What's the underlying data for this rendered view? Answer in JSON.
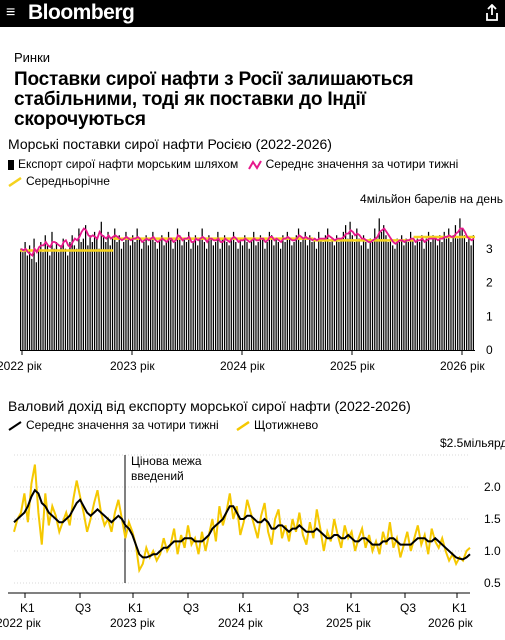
{
  "header": {
    "logo": "Bloomberg",
    "menu_icon": "hamburger-menu-icon",
    "share_icon": "share-icon",
    "background": "#000000"
  },
  "article": {
    "section": "Ринки",
    "headline": "Поставки сирої нафти з Росії залишаються стабільними, тоді як поставки до Індії скорочуються"
  },
  "chart1": {
    "title": "Морські поставки сирої нафти Росією (2022-2026)",
    "legend": {
      "bars": "Експорт сирої нафти морським шляхом",
      "avg4w": "Середнє значення за чотири тижні",
      "yearly": "Середньорічне"
    },
    "colors": {
      "bars": "#000000",
      "avg4w": "#e6198c",
      "yearly": "#f5d21e"
    },
    "unit_label": "мільйон барелів на день",
    "y_ticks": [
      "4",
      "3",
      "2",
      "1",
      "0"
    ],
    "x_labels": [
      "2022 рік",
      "2023 рік",
      "2024 рік",
      "2025 рік",
      "2026 рік"
    ]
  },
  "chart2": {
    "title": "Валовий дохід від експорту морської сирої нафти (2022-2026)",
    "legend": {
      "avg4w": "Середнє значення за чотири тижні",
      "weekly": "Щотижнево"
    },
    "colors": {
      "avg4w": "#000000",
      "weekly": "#f5c800"
    },
    "unit_label": "$2.5мільярд",
    "y_ticks": [
      "2.0",
      "1.5",
      "1.0",
      "0.5"
    ],
    "annotation": "Цінова межа введений",
    "quarter_labels": [
      "K1",
      "Q3",
      "K1",
      "Q3",
      "K1",
      "Q3",
      "K1",
      "Q3",
      "K1"
    ],
    "year_labels": [
      "2022 рік",
      "2023 рік",
      "2024 рік",
      "2025 рік",
      "2026 рік"
    ]
  },
  "chart_data": [
    {
      "type": "bar",
      "title": "Морські поставки сирої нафти Росією (2022-2026)",
      "ylabel": "мільйон барелів на день",
      "ylim": [
        0,
        4
      ],
      "x_start": "2022-01",
      "x_end": "2026-02",
      "series": [
        {
          "name": "Експорт сирої нафти морським шляхом",
          "values": [
            3.0,
            2.9,
            3.2,
            2.8,
            3.1,
            2.7,
            3.3,
            2.6,
            3.0,
            3.2,
            2.9,
            3.4,
            3.1,
            2.8,
            3.5,
            3.0,
            3.2,
            2.9,
            3.1,
            3.3,
            3.0,
            2.8,
            3.2,
            3.4,
            3.1,
            3.0,
            3.6,
            3.2,
            3.3,
            3.7,
            3.1,
            3.4,
            3.2,
            3.5,
            3.3,
            3.0,
            3.8,
            3.4,
            3.2,
            3.5,
            3.1,
            3.3,
            3.6,
            3.2,
            3.4,
            3.0,
            3.2,
            3.5,
            3.3,
            3.1,
            3.4,
            3.2,
            3.6,
            3.3,
            3.0,
            3.2,
            3.4,
            3.1,
            3.3,
            3.5,
            3.2,
            3.0,
            3.3,
            3.4,
            3.1,
            3.2,
            3.5,
            3.3,
            3.0,
            3.2,
            3.6,
            3.4,
            3.1,
            3.3,
            3.2,
            3.5,
            3.0,
            3.2,
            3.4,
            3.1,
            3.3,
            3.6,
            3.2,
            3.0,
            3.4,
            3.3,
            3.1,
            3.2,
            3.5,
            3.0,
            3.3,
            3.4,
            3.2,
            3.1,
            3.3,
            3.5,
            3.2,
            3.0,
            3.3,
            3.1,
            3.4,
            3.2,
            3.0,
            3.3,
            3.5,
            3.1,
            3.2,
            3.4,
            3.3,
            3.0,
            3.2,
            3.5,
            3.4,
            3.1,
            3.3,
            3.2,
            3.0,
            3.4,
            3.2,
            3.5,
            3.3,
            3.1,
            3.2,
            3.4,
            3.6,
            3.2,
            3.3,
            3.5,
            3.1,
            3.4,
            3.2,
            3.3,
            3.0,
            3.5,
            3.3,
            3.2,
            3.4,
            3.6,
            3.2,
            3.3,
            3.1,
            3.4,
            3.2,
            3.3,
            3.5,
            3.7,
            3.3,
            3.8,
            3.4,
            3.2,
            3.6,
            3.3,
            3.1,
            3.4,
            3.2,
            3.0,
            3.3,
            3.2,
            3.6,
            3.3,
            3.9,
            3.5,
            3.7,
            3.4,
            3.2,
            3.3,
            3.1,
            3.0,
            3.3,
            3.2,
            3.4,
            3.1,
            3.3,
            3.2,
            3.5,
            3.3,
            3.1,
            3.3,
            3.2,
            3.4,
            3.0,
            3.3,
            3.5,
            3.2,
            3.4,
            3.3,
            3.1,
            3.4,
            3.2,
            3.5,
            3.3,
            3.6,
            3.2,
            3.4,
            3.7,
            3.3,
            3.9,
            3.6,
            3.4,
            3.2,
            3.3,
            3.1,
            3.4
          ]
        }
      ],
      "avg4w": [
        3.0,
        2.95,
        3.0,
        2.9,
        2.85,
        2.8,
        3.0,
        2.9,
        3.05,
        3.1,
        3.1,
        3.2,
        3.1,
        3.05,
        3.2,
        3.2,
        3.15,
        3.1,
        3.05,
        3.2,
        3.25,
        3.1,
        3.05,
        3.2,
        3.3,
        3.25,
        3.35,
        3.5,
        3.6,
        3.55,
        3.4,
        3.35,
        3.4,
        3.35,
        3.3,
        3.5,
        3.4,
        3.35,
        3.3,
        3.4,
        3.3,
        3.35,
        3.4,
        3.35,
        3.3,
        3.25,
        3.3,
        3.35,
        3.3,
        3.25,
        3.3,
        3.3,
        3.35,
        3.3,
        3.2,
        3.25,
        3.3,
        3.25,
        3.3,
        3.35,
        3.25,
        3.2,
        3.25,
        3.3,
        3.25,
        3.2,
        3.3,
        3.3,
        3.2,
        3.25,
        3.4,
        3.35,
        3.25,
        3.3,
        3.3,
        3.35,
        3.2,
        3.2,
        3.3,
        3.25,
        3.3,
        3.35,
        3.3,
        3.2,
        3.3,
        3.3,
        3.25,
        3.25,
        3.3,
        3.2,
        3.2,
        3.3,
        3.25,
        3.2,
        3.3,
        3.35,
        3.3,
        3.2,
        3.25,
        3.25,
        3.3,
        3.25,
        3.2,
        3.25,
        3.3,
        3.25,
        3.25,
        3.3,
        3.3,
        3.2,
        3.25,
        3.35,
        3.35,
        3.25,
        3.3,
        3.25,
        3.2,
        3.3,
        3.3,
        3.35,
        3.3,
        3.25,
        3.25,
        3.3,
        3.4,
        3.35,
        3.3,
        3.35,
        3.3,
        3.3,
        3.25,
        3.3,
        3.25,
        3.3,
        3.3,
        3.3,
        3.3,
        3.4,
        3.35,
        3.3,
        3.25,
        3.3,
        3.3,
        3.3,
        3.35,
        3.45,
        3.45,
        3.55,
        3.5,
        3.4,
        3.45,
        3.4,
        3.3,
        3.3,
        3.25,
        3.2,
        3.2,
        3.25,
        3.3,
        3.35,
        3.5,
        3.55,
        3.6,
        3.5,
        3.4,
        3.3,
        3.2,
        3.15,
        3.2,
        3.25,
        3.25,
        3.2,
        3.25,
        3.25,
        3.3,
        3.3,
        3.2,
        3.25,
        3.25,
        3.3,
        3.2,
        3.25,
        3.3,
        3.3,
        3.3,
        3.3,
        3.25,
        3.3,
        3.3,
        3.35,
        3.35,
        3.4,
        3.35,
        3.35,
        3.45,
        3.5,
        3.6,
        3.6,
        3.5,
        3.35,
        3.3,
        3.25,
        3.3
      ],
      "yearly": [
        {
          "from": "2022",
          "to": "2023",
          "value": 2.95
        },
        {
          "from": "2023",
          "to": "2024",
          "value": 3.3
        },
        {
          "from": "2024",
          "to": "2025",
          "value": 3.3
        },
        {
          "from": "2025",
          "to": "2026",
          "value": 3.25
        },
        {
          "from": "2026",
          "to": "2026-02",
          "value": 3.35
        }
      ]
    },
    {
      "type": "line",
      "title": "Валовий дохід від експорту морської сирої нафти (2022-2026)",
      "ylabel": "$ мільярд",
      "ylim": [
        0.5,
        2.5
      ],
      "annotation": {
        "label": "Цінова межа введений",
        "x": "2022-12-05"
      },
      "series": [
        {
          "name": "Щотижнево",
          "values": [
            1.3,
            1.5,
            1.6,
            1.9,
            1.45,
            2.05,
            2.35,
            1.6,
            1.1,
            1.9,
            1.4,
            1.7,
            1.55,
            1.3,
            1.45,
            1.6,
            1.4,
            1.8,
            2.1,
            1.85,
            1.6,
            1.3,
            1.5,
            1.75,
            1.95,
            1.6,
            1.4,
            1.5,
            1.3,
            1.6,
            1.8,
            1.5,
            1.2,
            1.45,
            1.3,
            1.1,
            0.7,
            0.8,
            1.05,
            0.9,
            1.0,
            0.85,
            0.95,
            1.2,
            1.0,
            1.1,
            1.35,
            0.95,
            1.25,
            1.05,
            1.4,
            1.1,
            1.2,
            0.95,
            1.3,
            1.0,
            1.25,
            1.5,
            1.15,
            1.7,
            1.4,
            1.6,
            1.9,
            1.5,
            1.7,
            1.25,
            1.45,
            1.8,
            1.6,
            1.4,
            1.2,
            1.55,
            1.75,
            1.3,
            1.1,
            1.5,
            1.65,
            1.2,
            1.4,
            1.15,
            1.5,
            1.3,
            1.6,
            1.25,
            1.1,
            1.45,
            1.2,
            1.65,
            1.35,
            1.0,
            1.3,
            1.15,
            1.5,
            1.25,
            1.05,
            1.4,
            1.2,
            1.3,
            1.0,
            1.2,
            1.35,
            1.05,
            1.25,
            1.0,
            1.15,
            0.95,
            1.3,
            1.1,
            1.45,
            1.05,
            1.2,
            0.9,
            1.1,
            1.3,
            1.0,
            1.2,
            1.4,
            1.1,
            1.25,
            0.95,
            1.35,
            1.15,
            1.05,
            1.2,
            1.0,
            0.85,
            0.95,
            0.8,
            0.9,
            0.85,
            1.0,
            1.05
          ]
        },
        {
          "name": "Середнє значення за чотири тижні",
          "values": [
            1.45,
            1.5,
            1.55,
            1.6,
            1.7,
            1.85,
            1.95,
            1.9,
            1.75,
            1.7,
            1.6,
            1.55,
            1.5,
            1.45,
            1.45,
            1.5,
            1.55,
            1.65,
            1.75,
            1.8,
            1.7,
            1.6,
            1.55,
            1.6,
            1.65,
            1.6,
            1.55,
            1.5,
            1.45,
            1.5,
            1.55,
            1.5,
            1.4,
            1.35,
            1.25,
            1.1,
            0.95,
            0.9,
            0.9,
            0.92,
            0.95,
            0.95,
            1.0,
            1.05,
            1.05,
            1.1,
            1.15,
            1.15,
            1.15,
            1.2,
            1.2,
            1.2,
            1.15,
            1.15,
            1.15,
            1.2,
            1.25,
            1.35,
            1.4,
            1.45,
            1.5,
            1.6,
            1.7,
            1.7,
            1.6,
            1.5,
            1.5,
            1.55,
            1.55,
            1.5,
            1.45,
            1.45,
            1.5,
            1.45,
            1.35,
            1.35,
            1.4,
            1.4,
            1.35,
            1.3,
            1.35,
            1.35,
            1.4,
            1.35,
            1.3,
            1.3,
            1.3,
            1.35,
            1.3,
            1.25,
            1.2,
            1.2,
            1.25,
            1.25,
            1.2,
            1.2,
            1.25,
            1.2,
            1.15,
            1.15,
            1.2,
            1.2,
            1.15,
            1.1,
            1.1,
            1.1,
            1.15,
            1.15,
            1.2,
            1.2,
            1.15,
            1.1,
            1.1,
            1.1,
            1.1,
            1.15,
            1.2,
            1.2,
            1.2,
            1.15,
            1.15,
            1.2,
            1.15,
            1.1,
            1.05,
            1.0,
            0.95,
            0.9,
            0.88,
            0.87,
            0.9,
            0.95
          ]
        }
      ]
    }
  ]
}
